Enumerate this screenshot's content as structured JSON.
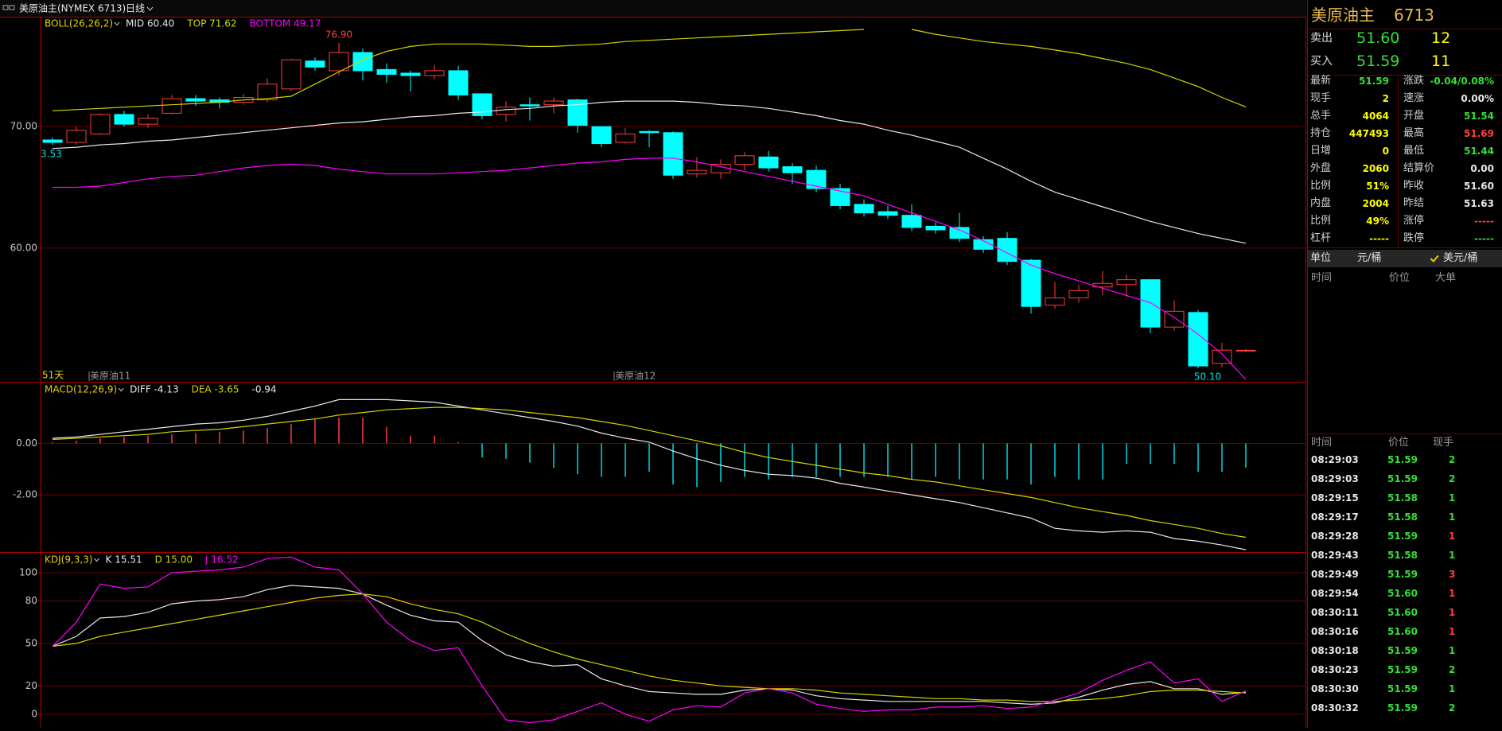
{
  "header": {
    "symbol": "美原油主(NYMEX 6713)",
    "period": "日线"
  },
  "chart_data": [
    {
      "type": "candlestick",
      "title": "BOLL(26,26,2)",
      "title_color": "#e6d200",
      "categories": [
        null,
        null,
        "美原油11",
        null,
        null,
        null,
        null,
        null,
        null,
        null,
        null,
        null,
        null,
        null,
        null,
        null,
        null,
        null,
        null,
        null,
        null,
        null,
        null,
        null,
        "美原油12",
        null,
        null,
        null,
        null,
        null,
        null,
        null,
        null,
        null,
        null,
        null,
        null,
        null,
        null,
        null,
        null,
        null,
        null,
        null,
        null,
        null,
        null,
        null,
        null,
        null,
        null
      ],
      "open": [
        68.9,
        68.7,
        69.4,
        71.0,
        70.2,
        71.1,
        72.3,
        72.2,
        72.0,
        72.2,
        73.1,
        75.4,
        74.6,
        76.1,
        74.7,
        74.4,
        74.2,
        74.6,
        72.7,
        71.0,
        71.8,
        71.8,
        72.2,
        70.0,
        68.7,
        69.6,
        69.5,
        66.1,
        66.2,
        66.9,
        67.5,
        66.7,
        66.4,
        64.9,
        63.6,
        63.0,
        62.7,
        61.8,
        61.7,
        60.7,
        60.8,
        59.0,
        55.3,
        55.9,
        56.8,
        57.0,
        57.4,
        53.5,
        54.7,
        50.5,
        51.54
      ],
      "high": [
        69.1,
        70.0,
        71.1,
        71.3,
        71.0,
        72.6,
        72.6,
        72.4,
        72.7,
        74.0,
        75.6,
        75.7,
        76.9,
        76.4,
        75.2,
        74.6,
        75.1,
        75.0,
        72.7,
        72.1,
        72.4,
        72.4,
        72.3,
        70.0,
        69.9,
        69.7,
        69.6,
        67.5,
        67.3,
        67.9,
        68.0,
        67.0,
        66.8,
        65.3,
        64.0,
        63.5,
        63.6,
        62.1,
        62.9,
        61.0,
        61.3,
        59.1,
        57.2,
        57.0,
        58.1,
        57.8,
        57.4,
        55.7,
        54.9,
        52.2,
        51.69
      ],
      "low": [
        68.5,
        68.5,
        69.3,
        70.0,
        69.9,
        71.0,
        71.7,
        71.5,
        71.8,
        72.0,
        72.9,
        74.6,
        74.2,
        73.8,
        73.6,
        72.9,
        73.9,
        72.2,
        70.6,
        70.4,
        70.5,
        71.1,
        69.5,
        68.3,
        68.6,
        68.3,
        65.7,
        65.8,
        65.7,
        66.4,
        66.3,
        65.3,
        64.6,
        63.2,
        62.6,
        62.4,
        61.4,
        61.2,
        60.5,
        59.6,
        58.6,
        54.6,
        55.0,
        55.5,
        56.1,
        56.0,
        53.0,
        53.2,
        50.1,
        50.2,
        51.44
      ],
      "close": [
        68.7,
        69.7,
        71.0,
        70.2,
        70.7,
        72.3,
        72.1,
        72.0,
        72.4,
        73.5,
        75.5,
        74.9,
        76.1,
        74.6,
        74.3,
        74.2,
        74.6,
        72.6,
        70.9,
        71.6,
        71.7,
        72.1,
        70.1,
        68.6,
        69.4,
        69.5,
        66.0,
        66.4,
        66.9,
        67.6,
        66.6,
        66.2,
        64.9,
        63.5,
        62.9,
        62.7,
        61.7,
        61.5,
        60.8,
        59.9,
        58.9,
        55.2,
        55.9,
        56.5,
        57.1,
        57.4,
        53.5,
        54.8,
        50.3,
        51.6,
        51.59
      ],
      "up_color": "#ff3c3c",
      "down_color": "#00ffff",
      "series": [
        {
          "name": "MID 60.40",
          "color": "#e8e8e8",
          "values": [
            68.2,
            68.3,
            68.5,
            68.6,
            68.8,
            68.9,
            69.1,
            69.3,
            69.5,
            69.7,
            69.9,
            70.1,
            70.3,
            70.4,
            70.6,
            70.8,
            70.9,
            71.1,
            71.2,
            71.4,
            71.5,
            71.7,
            71.8,
            72.0,
            72.1,
            72.1,
            72.1,
            72.0,
            71.8,
            71.7,
            71.5,
            71.2,
            70.9,
            70.5,
            70.2,
            69.7,
            69.3,
            68.8,
            68.3,
            67.4,
            66.5,
            65.5,
            64.6,
            64.0,
            63.4,
            62.8,
            62.2,
            61.7,
            61.2,
            60.8,
            60.4
          ]
        },
        {
          "name": "TOP 71.62",
          "color": "#d4d400",
          "values": [
            71.3,
            71.4,
            71.5,
            71.6,
            71.7,
            71.8,
            71.9,
            72.0,
            72.2,
            72.3,
            72.5,
            73.5,
            74.5,
            75.5,
            76.2,
            76.6,
            76.8,
            76.8,
            76.8,
            76.7,
            76.6,
            76.6,
            76.7,
            76.8,
            77.0,
            77.1,
            77.2,
            77.3,
            77.4,
            77.5,
            77.6,
            77.7,
            77.8,
            77.9,
            78.0,
            null,
            78.0,
            77.6,
            77.3,
            77.0,
            76.8,
            76.6,
            76.3,
            76.0,
            75.6,
            75.2,
            74.7,
            74.0,
            73.3,
            72.4,
            71.62
          ]
        },
        {
          "name": "BOTTOM 49.17",
          "color": "#ff00ff",
          "values": [
            65.0,
            65.0,
            65.1,
            65.4,
            65.7,
            65.9,
            66.0,
            66.3,
            66.6,
            66.8,
            66.9,
            66.8,
            66.5,
            66.3,
            66.1,
            66.1,
            66.1,
            66.2,
            66.3,
            66.4,
            66.6,
            66.8,
            67.0,
            67.1,
            67.3,
            67.4,
            67.4,
            67.1,
            66.7,
            66.3,
            65.9,
            65.5,
            65.1,
            64.7,
            64.3,
            63.6,
            62.9,
            62.2,
            61.5,
            60.6,
            59.6,
            58.6,
            57.9,
            57.3,
            56.7,
            56.1,
            55.5,
            54.3,
            52.9,
            51.3,
            49.17
          ]
        }
      ],
      "annotations": {
        "high_label": "76.90",
        "low_label": "50.10",
        "first_low_label": "3.53",
        "days_label": "51天"
      },
      "ylim": [
        49.06,
        78.98
      ],
      "yticks": [
        {
          "value": 60,
          "label": "60.00"
        },
        {
          "value": 70,
          "label": "70.00"
        }
      ],
      "grid": true
    },
    {
      "type": "macd",
      "title": "MACD(12,26,9)",
      "title_color": "#e6d200",
      "bars": {
        "name": "-0.94",
        "up_color": "#ff3c3c",
        "down_color": "#00d8e0",
        "values": [
          0.05,
          0.1,
          0.2,
          0.25,
          0.3,
          0.35,
          0.4,
          0.45,
          0.5,
          0.6,
          0.75,
          0.95,
          1.0,
          1.0,
          0.65,
          0.3,
          0.3,
          0.05,
          -0.55,
          -0.6,
          -0.75,
          -0.95,
          -1.2,
          -1.3,
          -1.3,
          -1.1,
          -1.6,
          -1.7,
          -1.5,
          -1.3,
          -1.4,
          -1.3,
          -1.3,
          -1.3,
          -1.3,
          -1.3,
          -1.4,
          -1.3,
          -1.4,
          -1.4,
          -1.4,
          -1.6,
          -1.3,
          -1.4,
          -1.4,
          -0.8,
          -0.8,
          -0.8,
          -1.1,
          -1.1,
          -0.94
        ]
      },
      "series": [
        {
          "name": "DIFF -4.13",
          "color": "#e8e8e8",
          "values": [
            0.2,
            0.25,
            0.35,
            0.45,
            0.55,
            0.65,
            0.75,
            0.8,
            0.9,
            1.05,
            1.25,
            1.45,
            1.7,
            1.7,
            1.7,
            1.65,
            1.6,
            1.45,
            1.3,
            1.15,
            1.0,
            0.85,
            0.67,
            0.4,
            0.2,
            0.05,
            -0.3,
            -0.6,
            -0.85,
            -1.05,
            -1.2,
            -1.25,
            -1.35,
            -1.55,
            -1.7,
            -1.85,
            -2.0,
            -2.15,
            -2.3,
            -2.5,
            -2.7,
            -2.9,
            -3.3,
            -3.4,
            -3.45,
            -3.4,
            -3.45,
            -3.7,
            -3.8,
            -3.95,
            -4.13
          ]
        },
        {
          "name": "DEA -3.65",
          "color": "#d4d400",
          "values": [
            0.15,
            0.2,
            0.25,
            0.3,
            0.35,
            0.45,
            0.5,
            0.55,
            0.65,
            0.75,
            0.85,
            0.95,
            1.1,
            1.2,
            1.3,
            1.35,
            1.4,
            1.4,
            1.35,
            1.3,
            1.2,
            1.1,
            1.0,
            0.85,
            0.7,
            0.5,
            0.3,
            0.1,
            -0.1,
            -0.35,
            -0.55,
            -0.7,
            -0.85,
            -1.0,
            -1.15,
            -1.25,
            -1.4,
            -1.5,
            -1.65,
            -1.8,
            -1.95,
            -2.1,
            -2.3,
            -2.5,
            -2.65,
            -2.8,
            -3.0,
            -3.15,
            -3.3,
            -3.5,
            -3.65
          ]
        }
      ],
      "ylim": [
        -4.19,
        2.33
      ],
      "yticks": [
        {
          "value": -2,
          "label": "-2.00"
        },
        {
          "value": 0,
          "label": "0.00"
        }
      ],
      "grid": true
    },
    {
      "type": "line",
      "title": "KDJ(9,3,3)",
      "title_color": "#e6d200",
      "series": [
        {
          "name": "K 15.51",
          "color": "#e8e8e8",
          "values": [
            48,
            55,
            68,
            69,
            72,
            78,
            80,
            81,
            83,
            88,
            91,
            90,
            89,
            85,
            77,
            70,
            66,
            65,
            52,
            42,
            37,
            34,
            35,
            25,
            20,
            16,
            15,
            14,
            14,
            17,
            18,
            17,
            13,
            11,
            10,
            9,
            9,
            9,
            9,
            9,
            8,
            7,
            8,
            12,
            17,
            21,
            23,
            18,
            18,
            14,
            15.51
          ]
        },
        {
          "name": "D 15.00",
          "color": "#d4d400",
          "values": [
            48,
            50,
            55,
            58,
            61,
            64,
            67,
            70,
            73,
            76,
            79,
            82,
            84,
            85,
            83,
            78,
            74,
            71,
            65,
            57,
            50,
            44,
            39,
            35,
            31,
            27,
            24,
            22,
            20,
            19,
            18,
            18,
            17,
            15,
            14,
            13,
            12,
            11,
            11,
            10,
            10,
            9,
            9,
            10,
            11,
            13,
            16,
            17,
            17,
            16,
            15.0
          ]
        },
        {
          "name": "J 16.52",
          "color": "#ff00ff",
          "values": [
            48,
            65,
            92,
            89,
            90,
            100,
            101,
            102,
            104,
            110,
            111,
            104,
            102,
            85,
            65,
            52,
            45,
            47,
            20,
            -4,
            -6,
            -4,
            2,
            8,
            0,
            -5,
            3,
            6,
            5,
            15,
            18,
            15,
            7,
            4,
            2,
            3,
            3,
            5,
            5,
            6,
            4,
            5,
            10,
            15,
            24,
            31,
            37,
            22,
            25,
            9,
            16.52
          ]
        }
      ],
      "ylim": [
        -7.4,
        113.5
      ],
      "yticks": [
        0,
        20,
        50,
        80,
        100
      ],
      "grid": true
    }
  ],
  "quote": {
    "name": "美原油主",
    "code": "6713",
    "color": "#e8b84a",
    "ask": {
      "label": "卖出",
      "price": "51.60",
      "volume": "12"
    },
    "bid": {
      "label": "买入",
      "price": "51.59",
      "volume": "11"
    },
    "stats": [
      [
        {
          "label": "最新",
          "value": "51.59",
          "color": "#33e033"
        },
        {
          "label": "涨跌",
          "value": "-0.04/0.08%",
          "color": "#33e033"
        }
      ],
      [
        {
          "label": "现手",
          "value": "2",
          "color": "#ffff00"
        },
        {
          "label": "速涨",
          "value": "0.00%",
          "color": "#e8e8e8"
        }
      ],
      [
        {
          "label": "总手",
          "value": "4064",
          "color": "#ffff00"
        },
        {
          "label": "开盘",
          "value": "51.54",
          "color": "#33e033"
        }
      ],
      [
        {
          "label": "持仓",
          "value": "447493",
          "color": "#ffff00"
        },
        {
          "label": "最高",
          "value": "51.69",
          "color": "#ff4040"
        }
      ],
      [
        {
          "label": "日增",
          "value": "0",
          "color": "#ffff00"
        },
        {
          "label": "最低",
          "value": "51.44",
          "color": "#33e033"
        }
      ],
      [
        {
          "label": "外盘",
          "value": "2060",
          "color": "#ffff00"
        },
        {
          "label": "结算价",
          "value": "0.00",
          "color": "#e8e8e8"
        }
      ],
      [
        {
          "label": "比例",
          "value": "51%",
          "color": "#ffff00"
        },
        {
          "label": "昨收",
          "value": "51.60",
          "color": "#e8e8e8"
        }
      ],
      [
        {
          "label": "内盘",
          "value": "2004",
          "color": "#ffff00"
        },
        {
          "label": "昨结",
          "value": "51.63",
          "color": "#e8e8e8"
        }
      ],
      [
        {
          "label": "比例",
          "value": "49%",
          "color": "#ffff00"
        },
        {
          "label": "涨停",
          "value": "-----",
          "color": "#ff4040"
        }
      ],
      [
        {
          "label": "杠杆",
          "value": "-----",
          "color": "#ffff00"
        },
        {
          "label": "跌停",
          "value": "-----",
          "color": "#33e033"
        }
      ]
    ],
    "unit": {
      "label": "单位",
      "options": [
        "元/桶",
        "美元/桶"
      ],
      "selected": 1
    },
    "big_orders": {
      "columns": [
        "时间",
        "价位",
        "大单"
      ]
    },
    "trades": {
      "columns": [
        "时间",
        "价位",
        "现手"
      ],
      "rows": [
        {
          "time": "08:29:03",
          "price": "51.59",
          "volume": "2",
          "color": "#33e033"
        },
        {
          "time": "08:29:03",
          "price": "51.59",
          "volume": "2",
          "color": "#33e033"
        },
        {
          "time": "08:29:15",
          "price": "51.58",
          "volume": "1",
          "color": "#33e033"
        },
        {
          "time": "08:29:17",
          "price": "51.58",
          "volume": "1",
          "color": "#33e033"
        },
        {
          "time": "08:29:28",
          "price": "51.59",
          "volume": "1",
          "color": "#ff4040"
        },
        {
          "time": "08:29:43",
          "price": "51.58",
          "volume": "1",
          "color": "#33e033"
        },
        {
          "time": "08:29:49",
          "price": "51.59",
          "volume": "3",
          "color": "#ff4040"
        },
        {
          "time": "08:29:54",
          "price": "51.60",
          "volume": "1",
          "color": "#ff4040"
        },
        {
          "time": "08:30:11",
          "price": "51.60",
          "volume": "1",
          "color": "#ff4040"
        },
        {
          "time": "08:30:16",
          "price": "51.60",
          "volume": "1",
          "color": "#ff4040"
        },
        {
          "time": "08:30:18",
          "price": "51.59",
          "volume": "1",
          "color": "#33e033"
        },
        {
          "time": "08:30:23",
          "price": "51.59",
          "volume": "2",
          "color": "#33e033"
        },
        {
          "time": "08:30:30",
          "price": "51.59",
          "volume": "1",
          "color": "#33e033"
        },
        {
          "time": "08:30:32",
          "price": "51.59",
          "volume": "2",
          "color": "#33e033"
        }
      ]
    }
  }
}
